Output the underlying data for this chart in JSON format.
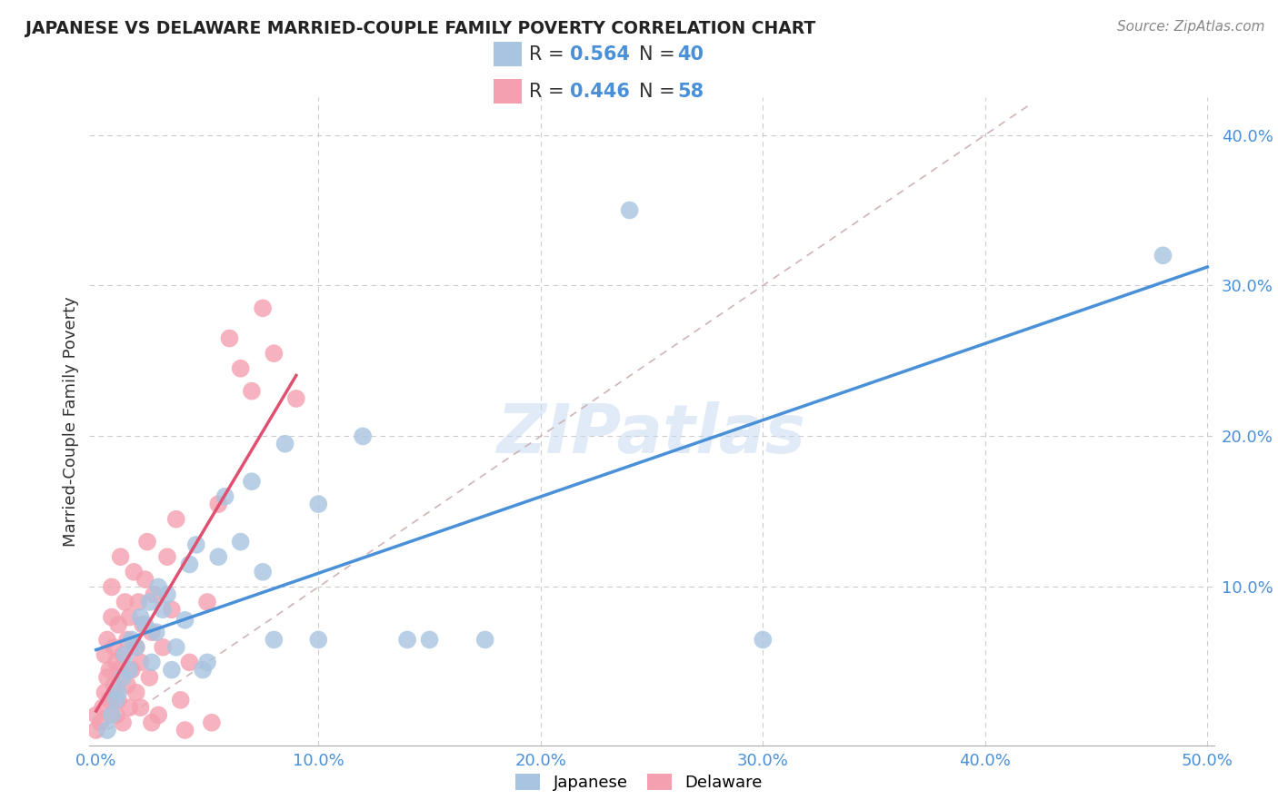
{
  "title": "JAPANESE VS DELAWARE MARRIED-COUPLE FAMILY POVERTY CORRELATION CHART",
  "source": "Source: ZipAtlas.com",
  "ylabel": "Married-Couple Family Poverty",
  "xlim": [
    -0.003,
    0.503
  ],
  "ylim": [
    -0.005,
    0.425
  ],
  "xticks": [
    0.0,
    0.1,
    0.2,
    0.3,
    0.4,
    0.5
  ],
  "yticks": [
    0.0,
    0.1,
    0.2,
    0.3,
    0.4
  ],
  "xtick_labels": [
    "0.0%",
    "10.0%",
    "20.0%",
    "30.0%",
    "40.0%",
    "50.0%"
  ],
  "ytick_labels": [
    "",
    "10.0%",
    "20.0%",
    "30.0%",
    "40.0%"
  ],
  "japanese_R": 0.564,
  "japanese_N": 40,
  "delaware_R": 0.446,
  "delaware_N": 58,
  "japanese_color": "#a8c4e0",
  "delaware_color": "#f4a0b0",
  "japanese_line_color": "#4a90d9",
  "delaware_line_color": "#e05070",
  "diagonal_color": "#c8a8a8",
  "watermark": "ZIPatlas",
  "japanese_points": [
    [
      0.005,
      0.005
    ],
    [
      0.007,
      0.015
    ],
    [
      0.009,
      0.025
    ],
    [
      0.01,
      0.03
    ],
    [
      0.012,
      0.04
    ],
    [
      0.013,
      0.055
    ],
    [
      0.015,
      0.045
    ],
    [
      0.016,
      0.065
    ],
    [
      0.018,
      0.06
    ],
    [
      0.02,
      0.08
    ],
    [
      0.022,
      0.075
    ],
    [
      0.024,
      0.09
    ],
    [
      0.025,
      0.05
    ],
    [
      0.027,
      0.07
    ],
    [
      0.028,
      0.1
    ],
    [
      0.03,
      0.085
    ],
    [
      0.032,
      0.095
    ],
    [
      0.034,
      0.045
    ],
    [
      0.036,
      0.06
    ],
    [
      0.04,
      0.078
    ],
    [
      0.042,
      0.115
    ],
    [
      0.045,
      0.128
    ],
    [
      0.048,
      0.045
    ],
    [
      0.05,
      0.05
    ],
    [
      0.055,
      0.12
    ],
    [
      0.058,
      0.16
    ],
    [
      0.065,
      0.13
    ],
    [
      0.07,
      0.17
    ],
    [
      0.075,
      0.11
    ],
    [
      0.08,
      0.065
    ],
    [
      0.085,
      0.195
    ],
    [
      0.1,
      0.155
    ],
    [
      0.1,
      0.065
    ],
    [
      0.12,
      0.2
    ],
    [
      0.14,
      0.065
    ],
    [
      0.15,
      0.065
    ],
    [
      0.175,
      0.065
    ],
    [
      0.24,
      0.35
    ],
    [
      0.3,
      0.065
    ],
    [
      0.48,
      0.32
    ]
  ],
  "delaware_points": [
    [
      0.0,
      0.005
    ],
    [
      0.0,
      0.015
    ],
    [
      0.002,
      0.01
    ],
    [
      0.003,
      0.02
    ],
    [
      0.004,
      0.03
    ],
    [
      0.004,
      0.055
    ],
    [
      0.005,
      0.04
    ],
    [
      0.005,
      0.065
    ],
    [
      0.006,
      0.025
    ],
    [
      0.006,
      0.045
    ],
    [
      0.007,
      0.08
    ],
    [
      0.007,
      0.1
    ],
    [
      0.008,
      0.035
    ],
    [
      0.008,
      0.06
    ],
    [
      0.009,
      0.015
    ],
    [
      0.009,
      0.05
    ],
    [
      0.01,
      0.025
    ],
    [
      0.01,
      0.045
    ],
    [
      0.01,
      0.075
    ],
    [
      0.011,
      0.12
    ],
    [
      0.012,
      0.01
    ],
    [
      0.012,
      0.055
    ],
    [
      0.013,
      0.09
    ],
    [
      0.014,
      0.035
    ],
    [
      0.014,
      0.065
    ],
    [
      0.015,
      0.02
    ],
    [
      0.015,
      0.08
    ],
    [
      0.016,
      0.045
    ],
    [
      0.017,
      0.11
    ],
    [
      0.018,
      0.03
    ],
    [
      0.018,
      0.06
    ],
    [
      0.019,
      0.09
    ],
    [
      0.02,
      0.02
    ],
    [
      0.02,
      0.05
    ],
    [
      0.021,
      0.075
    ],
    [
      0.022,
      0.105
    ],
    [
      0.023,
      0.13
    ],
    [
      0.024,
      0.04
    ],
    [
      0.025,
      0.01
    ],
    [
      0.025,
      0.07
    ],
    [
      0.026,
      0.095
    ],
    [
      0.028,
      0.015
    ],
    [
      0.03,
      0.06
    ],
    [
      0.032,
      0.12
    ],
    [
      0.034,
      0.085
    ],
    [
      0.036,
      0.145
    ],
    [
      0.038,
      0.025
    ],
    [
      0.04,
      0.005
    ],
    [
      0.042,
      0.05
    ],
    [
      0.05,
      0.09
    ],
    [
      0.052,
      0.01
    ],
    [
      0.055,
      0.155
    ],
    [
      0.06,
      0.265
    ],
    [
      0.065,
      0.245
    ],
    [
      0.07,
      0.23
    ],
    [
      0.075,
      0.285
    ],
    [
      0.08,
      0.255
    ],
    [
      0.09,
      0.225
    ]
  ]
}
